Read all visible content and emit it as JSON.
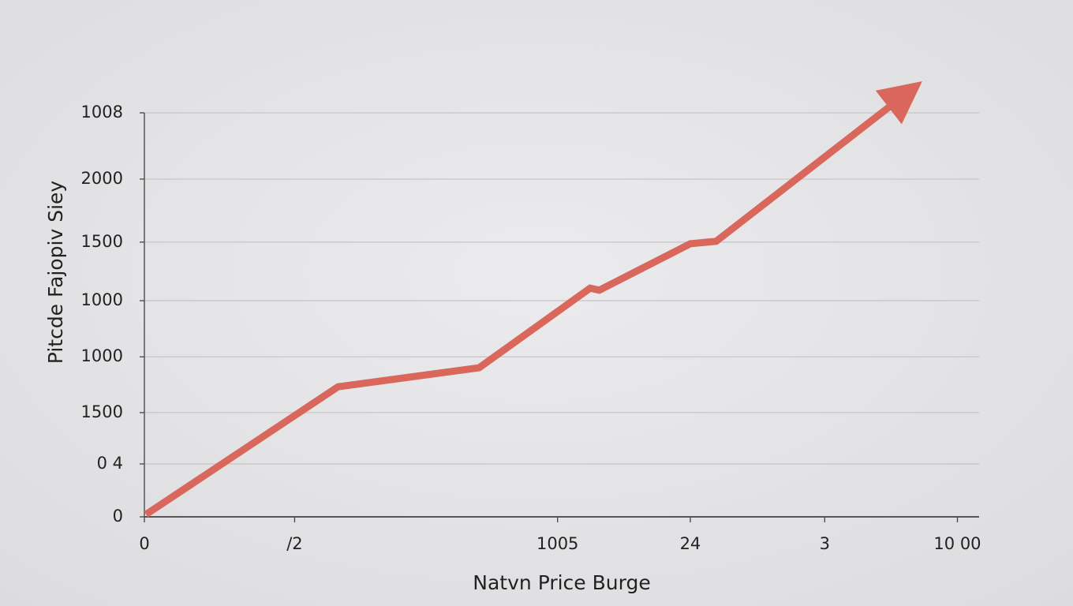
{
  "chart_data": {
    "type": "line",
    "x_label": "Natvn Price Burge",
    "y_label": "Pitcde Fajopiv Siey",
    "x": [
      0.2,
      23.2,
      40.1,
      53.4,
      54.5,
      65.4,
      68.5,
      90.5
    ],
    "series": [
      {
        "color": "#d9675b",
        "values": [
          0.6,
          32.2,
          36.9,
          56.6,
          56.1,
          67.6,
          68.2,
          103.5
        ]
      }
    ],
    "xlim": [
      0,
      100
    ],
    "ylim": [
      0,
      100
    ],
    "xticks": [
      0,
      {
        "value": 18,
        "label": "/2"
      },
      {
        "value": 49.5,
        "label": "1005"
      },
      {
        "value": 65.4,
        "label": "24"
      },
      {
        "value": 81.5,
        "label": "3"
      },
      {
        "value": 97.4,
        "label": "10 00"
      }
    ],
    "yticks": [
      0,
      {
        "value": 13.1,
        "label": "0 4"
      },
      {
        "value": 25.8,
        "label": "1500"
      },
      {
        "value": 39.6,
        "label": "1000"
      },
      {
        "value": 53.5,
        "label": "1000"
      },
      {
        "value": 68,
        "label": "1500"
      },
      {
        "value": 83.6,
        "label": "2000"
      },
      {
        "value": 100,
        "label": "1008"
      }
    ],
    "grid": true
  }
}
